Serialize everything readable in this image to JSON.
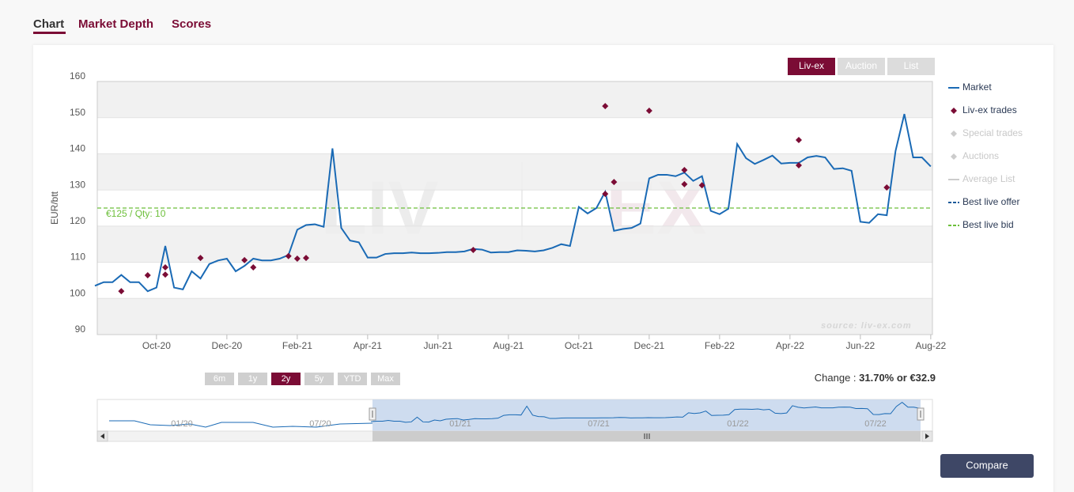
{
  "tabs": [
    "Chart",
    "Market Depth",
    "Scores"
  ],
  "source_buttons": [
    "Liv-ex",
    "Auction",
    "List"
  ],
  "range_buttons": [
    "6m",
    "1y",
    "2y",
    "5y",
    "YTD",
    "Max"
  ],
  "change": {
    "label": "Change : ",
    "value": "31.70% or €32.9"
  },
  "compare_button": "Compare",
  "watermark": {
    "left": "LIV",
    "right": "EX"
  },
  "source_note": "source: liv-ex.com",
  "navigator_labels": [
    "01/20",
    "07/20",
    "01/21",
    "07/21",
    "01/22",
    "07/22"
  ],
  "legend_inactive": [
    "Special trades",
    "Auctions",
    "Average List"
  ],
  "chart_data": {
    "type": "line",
    "ylabel": "EUR/btt",
    "ylim": [
      90,
      160
    ],
    "yticks": [
      90,
      100,
      110,
      120,
      130,
      140,
      150,
      160
    ],
    "categories": [
      null,
      null,
      null,
      null,
      null,
      null,
      null,
      "Oct-20",
      null,
      null,
      null,
      null,
      null,
      null,
      null,
      "Dec-20",
      null,
      null,
      null,
      null,
      null,
      null,
      null,
      "Feb-21",
      null,
      null,
      null,
      null,
      null,
      null,
      null,
      "Apr-21",
      null,
      null,
      null,
      null,
      null,
      null,
      null,
      "Jun-21",
      null,
      null,
      null,
      null,
      null,
      null,
      null,
      "Aug-21",
      null,
      null,
      null,
      null,
      null,
      null,
      null,
      "Oct-21",
      null,
      null,
      null,
      null,
      null,
      null,
      null,
      "Dec-21",
      null,
      null,
      null,
      null,
      null,
      null,
      null,
      "Feb-22",
      null,
      null,
      null,
      null,
      null,
      null,
      null,
      "Apr-22",
      null,
      null,
      null,
      null,
      null,
      null,
      null,
      "Jun-22",
      null,
      null,
      null,
      null,
      null,
      null,
      null,
      "Aug-22"
    ],
    "series": [
      {
        "name": "Market",
        "color": "#1a6ab5",
        "values": [
          103.5,
          104.5,
          104.5,
          106.5,
          104.5,
          104.5,
          102,
          103,
          114.5,
          103,
          102.5,
          107.5,
          105.5,
          109.5,
          110.5,
          111,
          107.5,
          109,
          111,
          110.5,
          110.5,
          111,
          112,
          119,
          120.3,
          120.5,
          119.8,
          141.5,
          119.5,
          116,
          115.5,
          111.3,
          111.3,
          112.3,
          112.5,
          112.5,
          112.7,
          112.5,
          112.5,
          112.6,
          112.8,
          112.8,
          113,
          113.7,
          113.5,
          112.7,
          112.8,
          112.8,
          113.3,
          113.2,
          113,
          113.3,
          114,
          115,
          114.5,
          125.3,
          123.5,
          125,
          129.5,
          118.7,
          119.2,
          119.5,
          120.7,
          133.2,
          134.2,
          134.2,
          133.8,
          134.8,
          132.5,
          133.8,
          124.2,
          123.3,
          124.8,
          142.7,
          138.8,
          137.2,
          138.3,
          139.5,
          137.3,
          137.5,
          137.5,
          139,
          139.4,
          139,
          135.8,
          136,
          135.3,
          121.2,
          120.9,
          123.3,
          123,
          140.8,
          151,
          139,
          139,
          136.5
        ]
      },
      {
        "name": "Liv-ex trades",
        "color": "#7b0c35",
        "type": "scatter",
        "values": [
          null,
          null,
          null,
          [
            102
          ],
          null,
          null,
          [
            106.4
          ],
          null,
          [
            108.6,
            106.6
          ],
          null,
          null,
          null,
          [
            111.2
          ],
          null,
          null,
          null,
          null,
          [
            110.6
          ],
          [
            108.6
          ],
          null,
          null,
          null,
          [
            111.7
          ],
          [
            111
          ],
          [
            111.2
          ],
          null,
          null,
          null,
          null,
          null,
          null,
          null,
          null,
          null,
          null,
          null,
          null,
          null,
          null,
          null,
          null,
          null,
          null,
          [
            113.4
          ],
          null,
          null,
          null,
          null,
          null,
          null,
          null,
          null,
          null,
          null,
          null,
          null,
          null,
          null,
          [
            128.9,
            153.2
          ],
          [
            132.2
          ],
          null,
          null,
          null,
          [
            151.9
          ],
          null,
          null,
          null,
          [
            135.5,
            131.6
          ],
          null,
          [
            131.3
          ],
          null,
          null,
          null,
          null,
          null,
          null,
          null,
          null,
          null,
          null,
          [
            143.8,
            136.8
          ],
          null,
          null,
          null,
          null,
          null,
          null,
          null,
          null,
          null,
          [
            130.7
          ],
          null,
          null,
          null,
          null,
          null
        ]
      }
    ],
    "reference_lines": [
      {
        "name": "Best live offer",
        "color": "#1a5a9a"
      },
      {
        "name": "Best live bid",
        "color": "#6cbf3a",
        "value": 125,
        "label": "€125 / Qty: 10"
      }
    ]
  }
}
